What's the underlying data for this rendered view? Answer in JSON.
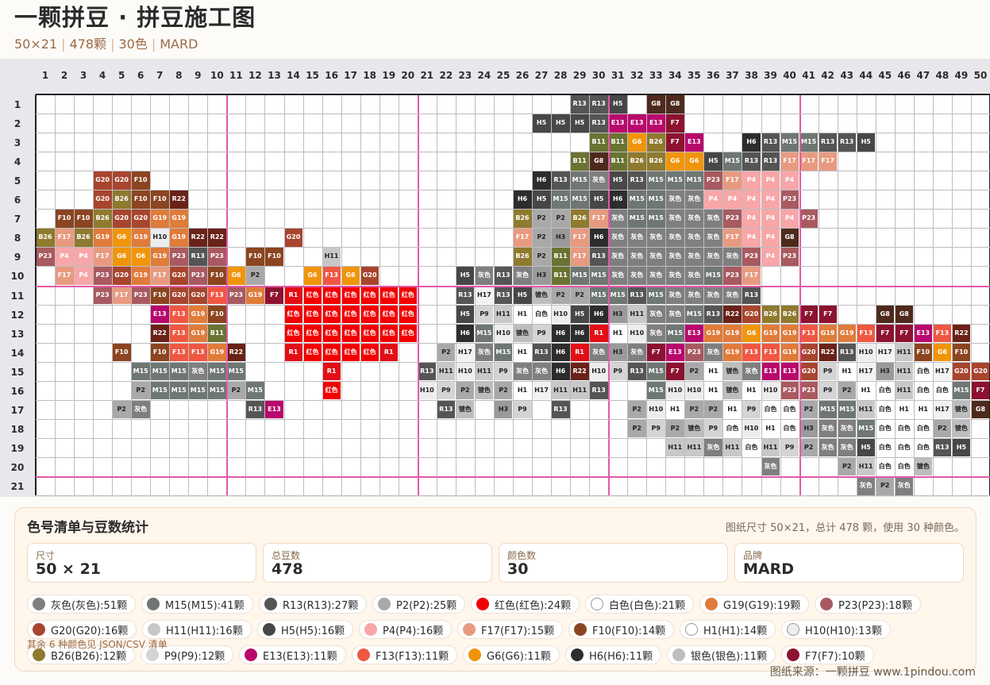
{
  "header": {
    "title": "一颗拼豆 · 拼豆施工图",
    "subtitle": [
      "50×21",
      "478颗",
      "30色",
      "MARD"
    ]
  },
  "grid": {
    "cols": 50,
    "rows": 21,
    "major_every": 10,
    "rows_data": [
      {
        "r": 1,
        "segs": [
          [
            29,
            "R13 R13 H5 _ G8 G8"
          ]
        ]
      },
      {
        "r": 2,
        "segs": [
          [
            27,
            "H5 H5 H5 R13 E13 E13 E13 F7"
          ]
        ]
      },
      {
        "r": 3,
        "segs": [
          [
            30,
            "B11 B11 G6 B26 F7 E13 _ _ H6 R13 M15 M15 R13 R13 H5"
          ]
        ]
      },
      {
        "r": 4,
        "segs": [
          [
            29,
            "B11 G8 B11 B26 B26 G6 G6 H5 M15 R13 R13 F17 F17 F17"
          ]
        ]
      },
      {
        "r": 5,
        "segs": [
          [
            4,
            "G20 G20 F10"
          ],
          [
            27,
            "H6 R13 M15 灰色 H5 R13 M15 M15 M15 P23 F17 P4 P4 P4"
          ]
        ]
      },
      {
        "r": 6,
        "segs": [
          [
            4,
            "G20 B26 F10 F10 R22"
          ],
          [
            26,
            "H6 H5 M15 M15 H5 H6 M15 M15 灰色 灰色 P4 P4 P4 P4 P23"
          ]
        ]
      },
      {
        "r": 7,
        "segs": [
          [
            2,
            "F10 F10 B26 G20 G20 G19 G19"
          ],
          [
            26,
            "B26 P2 P2 B26 F17 灰色 M15 M15 灰色 灰色 灰色 P23 P4 P4 P4 P23"
          ]
        ]
      },
      {
        "r": 8,
        "segs": [
          [
            1,
            "B26 F17 B26 G19 G6 G19 H10 G19 R22 R22"
          ],
          [
            14,
            "G20"
          ],
          [
            26,
            "F17 P2 H3 F17 H6 灰色 灰色 灰色 灰色 灰色 灰色 F17 P4 P4 G8"
          ]
        ]
      },
      {
        "r": 9,
        "segs": [
          [
            1,
            "P23 P4 P4 F17 G6 G6 G19 P23 R13 P23"
          ],
          [
            12,
            "F10 F10"
          ],
          [
            16,
            "H11"
          ],
          [
            26,
            "B26 P2 B11 F17 R13 灰色 灰色 灰色 灰色 灰色 灰色 灰色 P23 P4 P23"
          ]
        ]
      },
      {
        "r": 10,
        "segs": [
          [
            2,
            "F17 P4 P23 G20 G19 F17 G20 P23 F10 G6 P2"
          ],
          [
            15,
            "G6 F13 G6 G20"
          ],
          [
            23,
            "H5 灰色 R13 灰色 H3 B11 M15 M15 灰色 灰色 灰色 灰色 灰色 M15 P23 F17"
          ]
        ]
      },
      {
        "r": 11,
        "segs": [
          [
            4,
            "P23 F17 P23 F10 G20 G20 F13 P23 G19 F7 R1 红色 红色 红色 红色 红色 红色"
          ],
          [
            23,
            "R13 H17 R13 H5 镀色 P2 P2 M15 M15 R13 M15 灰色 灰色 灰色 灰色 R13"
          ]
        ]
      },
      {
        "r": 12,
        "segs": [
          [
            7,
            "E13 F13 G19 F10"
          ],
          [
            14,
            "红色 红色 红色 红色 红色 红色 红色"
          ],
          [
            23,
            "H5 P9 H11 H1 白色 H10 H5 H6 H3 H11 灰色 灰色 M15 R13 R22 G20 B26 B26 F7 F7"
          ],
          [
            45,
            "G8 G8"
          ]
        ]
      },
      {
        "r": 13,
        "segs": [
          [
            7,
            "R22 F13 G19 B11"
          ],
          [
            14,
            "红色 红色 红色 红色 红色 红色 红色"
          ],
          [
            23,
            "H6 M15 H10 镀色 P9 H6 H6 R1 H1 H10 灰色 M15 E13 G19 G19 G6 G19 G19 F13 G19 G19 F13 F7 F7 E13 F13 R22"
          ]
        ]
      },
      {
        "r": 14,
        "segs": [
          [
            5,
            "F10"
          ],
          [
            7,
            "F10 F13 F13 G19 R22"
          ],
          [
            14,
            "R1 红色 红色 红色 红色 R1"
          ],
          [
            22,
            "P2 H17 灰色 M15 H1 R13 H6 R1 灰色 H3 灰色 F7 E13 P23 灰色 G19 F13 F13 G19 G20 R22 R13 H10 H17 H11 F10 G6 F10"
          ]
        ]
      },
      {
        "r": 15,
        "segs": [
          [
            6,
            "M15 M15 M15 灰色 M15 M15"
          ],
          [
            16,
            "R1"
          ],
          [
            21,
            "R13 H11 H10 H11 P9 灰色 灰色 H6 R22 H10 P9 R13 M15 F7 P2 H1 镀色 灰色 E13 E13 G20 P9 H1 H17 H3 H11 白色 H17 G20 G20"
          ]
        ]
      },
      {
        "r": 16,
        "segs": [
          [
            6,
            "P2 M15 M15 M15 M15 P2 M15"
          ],
          [
            16,
            "红色"
          ],
          [
            21,
            "H10 P9 P2 镀色 P2 H1 H17 H11 H11 R13"
          ],
          [
            33,
            "M15 H10 H10 H1 镀色 H1 H10 P23 P23 P9 P2 H1 白色 H11 白色 白色 M15 F7"
          ]
        ]
      },
      {
        "r": 17,
        "segs": [
          [
            5,
            "P2 灰色"
          ],
          [
            12,
            "R13 E13"
          ],
          [
            22,
            "R13 镀色 _ H3 P9 _ R13"
          ],
          [
            32,
            "P2 H10 H1 P2 P2 H1 P9 白色 白色 P2 M15 M15 H11 白色 H1 H1 H17 镀色 G8"
          ]
        ]
      },
      {
        "r": 18,
        "segs": [
          [
            32,
            "P2 P9 P2 镀色 P9 白色 H10 H1 白色 H3 灰色 灰色 M15 白色 白色 白色 P2 镀色"
          ]
        ]
      },
      {
        "r": 19,
        "segs": [
          [
            34,
            "H11 H11 灰色 H11 白色 H11 P9 P2 灰色 灰色 H5 白色 白色 白色 R13 H5"
          ]
        ]
      },
      {
        "r": 20,
        "segs": [
          [
            39,
            "灰色"
          ],
          [
            43,
            "P2 H11 白色 白色 镀色"
          ]
        ]
      },
      {
        "r": 21,
        "segs": [
          [
            44,
            "灰色 P2 灰色"
          ]
        ]
      }
    ]
  },
  "palette": {
    "灰色": "#7f7f7f",
    "M15": "#6f7773",
    "R13": "#555555",
    "P2": "#a9a9a9",
    "红色": "#f20000",
    "白色": "#ffffff",
    "G19": "#e07b3a",
    "P23": "#a85a60",
    "G20": "#a8452e",
    "H11": "#c8c8c8",
    "H5": "#474747",
    "P4": "#f8a6a8",
    "F17": "#e89a80",
    "F10": "#8b4520",
    "H1": "#ffffff",
    "H10": "#ededed",
    "B26": "#8f7a2e",
    "P9": "#d4d4d4",
    "E13": "#b8086c",
    "F13": "#f05742",
    "G6": "#f0950a",
    "H6": "#2d2d2d",
    "镀色": "#bdbdbd",
    "F7": "#8c1230",
    "H3": "#9a9a9a",
    "B11": "#6b7332",
    "G8": "#4e2a1c",
    "R22": "#6a2218",
    "H17": "#f2f2f2",
    "R1": "#e30e16"
  },
  "light_text": [
    "白色",
    "H1",
    "H10",
    "H11",
    "P9",
    "H17",
    "镀色",
    "P2",
    "H3"
  ],
  "panel": {
    "title": "色号清单与豆数统计",
    "note": "图纸尺寸 50×21，总计 478 颗，使用 30 种颜色。",
    "cards": [
      {
        "label": "尺寸",
        "value": "50 × 21"
      },
      {
        "label": "总豆数",
        "value": "478"
      },
      {
        "label": "颜色数",
        "value": "30"
      },
      {
        "label": "品牌",
        "value": "MARD"
      }
    ],
    "chips": [
      [
        "灰色",
        "灰色(灰色):51颗"
      ],
      [
        "M15",
        "M15(M15):41颗"
      ],
      [
        "R13",
        "R13(R13):27颗"
      ],
      [
        "P2",
        "P2(P2):25颗"
      ],
      [
        "红色",
        "红色(红色):24颗"
      ],
      [
        "白色",
        "白色(白色):21颗"
      ],
      [
        "G19",
        "G19(G19):19颗"
      ],
      [
        "P23",
        "P23(P23):18颗"
      ],
      [
        "G20",
        "G20(G20):16颗"
      ],
      [
        "H11",
        "H11(H11):16颗"
      ],
      [
        "H5",
        "H5(H5):16颗"
      ],
      [
        "P4",
        "P4(P4):16颗"
      ],
      [
        "F17",
        "F17(F17):15颗"
      ],
      [
        "F10",
        "F10(F10):14颗"
      ],
      [
        "H1",
        "H1(H1):14颗"
      ],
      [
        "H10",
        "H10(H10):13颗"
      ],
      [
        "B26",
        "B26(B26):12颗"
      ],
      [
        "P9",
        "P9(P9):12颗"
      ],
      [
        "E13",
        "E13(E13):11颗"
      ],
      [
        "F13",
        "F13(F13):11颗"
      ],
      [
        "G6",
        "G6(G6):11颗"
      ],
      [
        "H6",
        "H6(H6):11颗"
      ],
      [
        "镀色",
        "银色(银色):11颗"
      ],
      [
        "F7",
        "F7(F7):10颗"
      ]
    ],
    "more": "其余 6 种颜色见 JSON/CSV 清单"
  },
  "footer": {
    "source": "图纸来源：一颗拼豆 www.1pindou.com"
  }
}
